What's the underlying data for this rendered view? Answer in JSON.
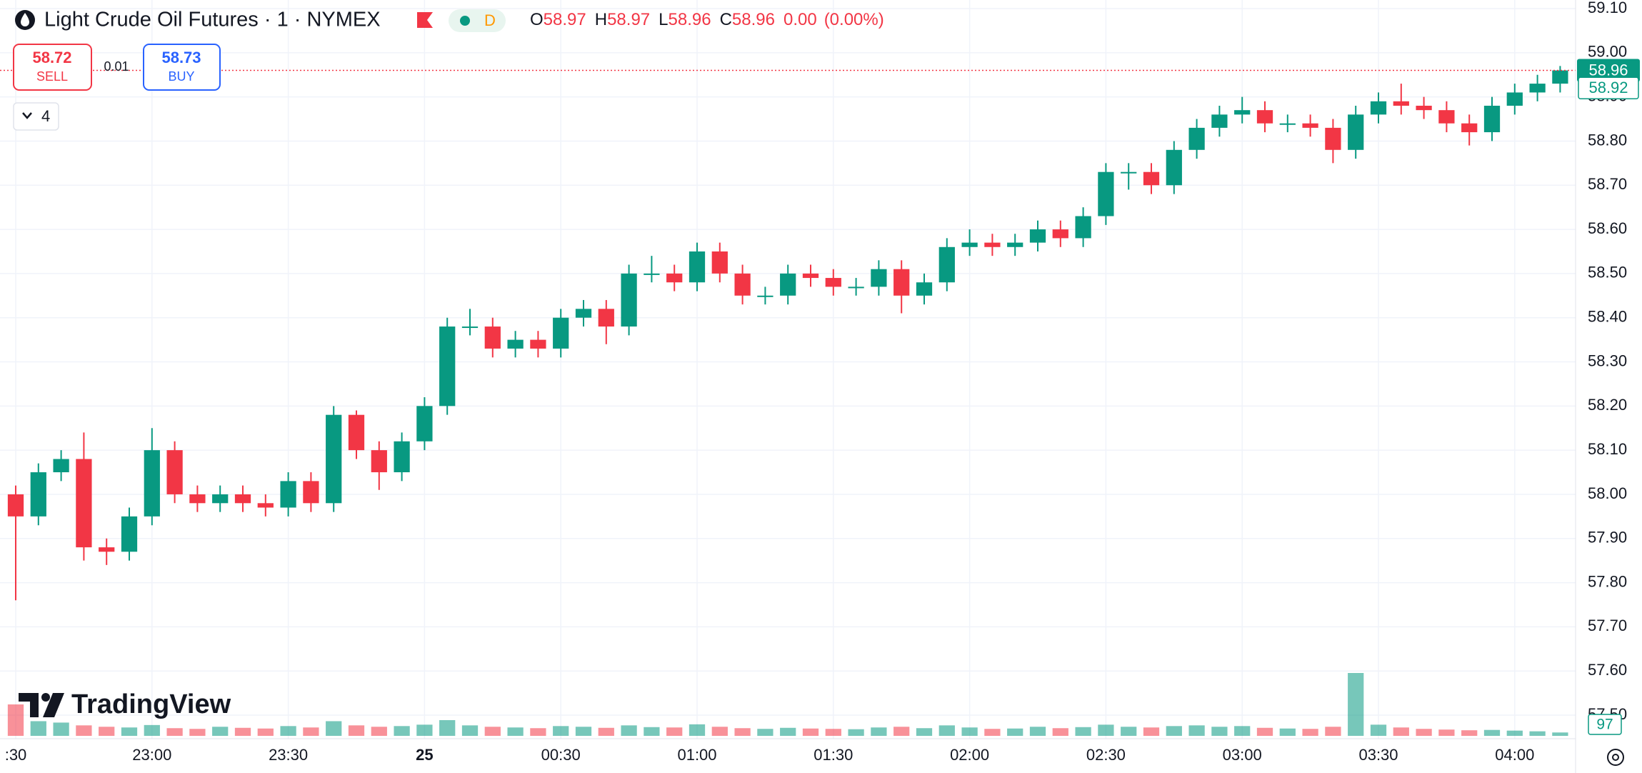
{
  "header": {
    "title": "Light Crude Oil Futures · 1 · NYMEX",
    "badge": "D",
    "open_label": "O",
    "open": 58.97,
    "high_label": "H",
    "high": 58.97,
    "low_label": "L",
    "low": 58.96,
    "close_label": "C",
    "close": 58.96,
    "change": {
      "value": 0,
      "label": "0.00"
    },
    "change_pct": "(0.00%)"
  },
  "trade": {
    "sell": 58.72,
    "sell_label": "SELL",
    "spread": 0.01,
    "buy": 58.73,
    "buy_label": "BUY",
    "indicators": 4
  },
  "logo": "TradingView",
  "chart_data": {
    "type": "candlestick",
    "categories": [
      ":30",
      null,
      null,
      null,
      null,
      null,
      "23:00",
      null,
      null,
      null,
      null,
      null,
      "23:30",
      null,
      null,
      null,
      null,
      null,
      "25",
      null,
      null,
      null,
      null,
      null,
      "00:30",
      null,
      null,
      null,
      null,
      null,
      "01:00",
      null,
      null,
      null,
      null,
      null,
      "01:30",
      null,
      null,
      null,
      null,
      null,
      "02:00",
      null,
      null,
      null,
      null,
      null,
      "02:30",
      null,
      null,
      null,
      null,
      null,
      "03:00",
      null,
      null,
      null,
      null,
      null,
      "03:30",
      null,
      null,
      null,
      null,
      null,
      "04:00",
      null,
      null
    ],
    "open": [
      58.0,
      57.95,
      58.05,
      58.08,
      57.88,
      57.87,
      57.95,
      58.1,
      58.0,
      57.98,
      58.0,
      57.98,
      57.97,
      58.03,
      57.98,
      58.18,
      58.1,
      58.05,
      58.12,
      58.2,
      58.38,
      58.38,
      58.33,
      58.35,
      58.33,
      58.4,
      58.42,
      58.38,
      58.5,
      58.5,
      58.48,
      58.55,
      58.5,
      58.45,
      58.45,
      58.5,
      58.49,
      58.47,
      58.47,
      58.51,
      58.45,
      58.48,
      58.56,
      58.57,
      58.56,
      58.57,
      58.6,
      58.58,
      58.63,
      58.73,
      58.73,
      58.7,
      58.78,
      58.83,
      58.86,
      58.87,
      58.84,
      58.84,
      58.83,
      58.78,
      58.86,
      58.89,
      58.88,
      58.87,
      58.84,
      58.82,
      58.88,
      58.91,
      58.93
    ],
    "high": [
      58.02,
      58.07,
      58.1,
      58.14,
      57.9,
      57.97,
      58.15,
      58.12,
      58.02,
      58.02,
      58.02,
      58.0,
      58.05,
      58.05,
      58.2,
      58.19,
      58.12,
      58.14,
      58.22,
      58.4,
      58.42,
      58.4,
      58.37,
      58.37,
      58.42,
      58.44,
      58.44,
      58.52,
      58.54,
      58.52,
      58.57,
      58.57,
      58.52,
      58.47,
      58.52,
      58.52,
      58.51,
      58.49,
      58.53,
      58.53,
      58.5,
      58.58,
      58.6,
      58.59,
      58.59,
      58.62,
      58.62,
      58.65,
      58.75,
      58.75,
      58.75,
      58.8,
      58.85,
      58.88,
      58.9,
      58.89,
      58.86,
      58.86,
      58.85,
      58.88,
      58.91,
      58.93,
      58.9,
      58.89,
      58.86,
      58.9,
      58.93,
      58.95,
      58.97
    ],
    "low": [
      57.76,
      57.93,
      58.03,
      57.85,
      57.84,
      57.85,
      57.93,
      57.98,
      57.96,
      57.96,
      57.96,
      57.95,
      57.95,
      57.96,
      57.96,
      58.08,
      58.01,
      58.03,
      58.1,
      58.18,
      58.36,
      58.31,
      58.31,
      58.31,
      58.31,
      58.38,
      58.34,
      58.36,
      58.48,
      58.46,
      58.46,
      58.48,
      58.43,
      58.43,
      58.43,
      58.47,
      58.45,
      58.45,
      58.45,
      58.41,
      58.43,
      58.46,
      58.54,
      58.54,
      58.54,
      58.55,
      58.56,
      58.56,
      58.61,
      58.69,
      58.68,
      58.68,
      58.76,
      58.81,
      58.84,
      58.82,
      58.82,
      58.81,
      58.75,
      58.76,
      58.84,
      58.86,
      58.85,
      58.82,
      58.79,
      58.8,
      58.86,
      58.89,
      58.91
    ],
    "close": [
      57.95,
      58.05,
      58.08,
      57.88,
      57.87,
      57.95,
      58.1,
      58.0,
      57.98,
      58.0,
      57.98,
      57.97,
      58.03,
      57.98,
      58.18,
      58.1,
      58.05,
      58.12,
      58.2,
      58.38,
      58.38,
      58.33,
      58.35,
      58.33,
      58.4,
      58.42,
      58.38,
      58.5,
      58.5,
      58.48,
      58.55,
      58.5,
      58.45,
      58.45,
      58.5,
      58.49,
      58.47,
      58.47,
      58.51,
      58.45,
      58.48,
      58.56,
      58.57,
      58.56,
      58.57,
      58.6,
      58.58,
      58.63,
      58.73,
      58.73,
      58.7,
      58.78,
      58.83,
      58.86,
      58.87,
      58.84,
      58.84,
      58.83,
      58.78,
      58.86,
      58.89,
      58.88,
      58.87,
      58.84,
      58.82,
      58.88,
      58.91,
      58.93,
      58.96
    ],
    "volumes": [
      900,
      420,
      380,
      300,
      260,
      240,
      310,
      220,
      200,
      260,
      230,
      210,
      280,
      240,
      420,
      300,
      260,
      280,
      320,
      450,
      300,
      260,
      240,
      220,
      280,
      260,
      230,
      300,
      250,
      240,
      330,
      260,
      220,
      200,
      230,
      210,
      200,
      190,
      240,
      260,
      220,
      300,
      240,
      200,
      210,
      260,
      220,
      250,
      320,
      260,
      240,
      280,
      300,
      260,
      280,
      230,
      210,
      200,
      260,
      1800,
      320,
      240,
      200,
      180,
      160,
      170,
      150,
      130,
      97
    ],
    "secondary_price": 58.92,
    "up_color": "#089981",
    "down_color": "#f23645",
    "ylim": [
      57.5,
      59.1
    ],
    "yticks": [
      {
        "value": 57.5,
        "label": "57.50"
      },
      {
        "value": 57.6,
        "label": "57.60"
      },
      {
        "value": 57.7,
        "label": "57.70"
      },
      {
        "value": 57.8,
        "label": "57.80"
      },
      {
        "value": 57.9,
        "label": "57.90"
      },
      {
        "value": 58,
        "label": "58.00"
      },
      {
        "value": 58.1,
        "label": "58.10"
      },
      {
        "value": 58.2,
        "label": "58.20"
      },
      {
        "value": 58.3,
        "label": "58.30"
      },
      {
        "value": 58.4,
        "label": "58.40"
      },
      {
        "value": 58.5,
        "label": "58.50"
      },
      {
        "value": 58.6,
        "label": "58.60"
      },
      {
        "value": 58.7,
        "label": "58.70"
      },
      {
        "value": 58.8,
        "label": "58.80"
      },
      {
        "value": 58.9,
        "label": "58.90"
      },
      {
        "value": 59,
        "label": "59.00"
      },
      {
        "value": 59.1,
        "label": "59.10"
      }
    ],
    "grid": true
  }
}
